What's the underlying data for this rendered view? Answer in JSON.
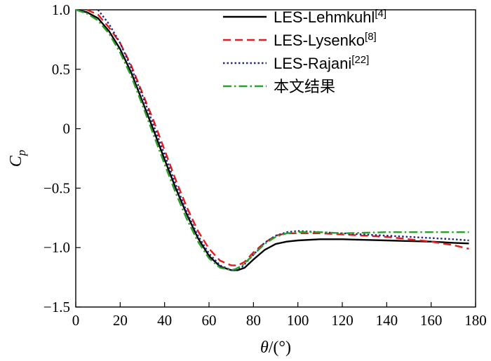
{
  "chart_data": {
    "type": "line",
    "xlabel_symbol": "θ",
    "xlabel_unit": "/(°)",
    "ylabel_main": "C",
    "ylabel_sub": "p",
    "xlim": [
      0,
      180
    ],
    "ylim": [
      -1.5,
      1.0
    ],
    "x_ticks": [
      0,
      20,
      40,
      60,
      80,
      100,
      120,
      140,
      160,
      180
    ],
    "y_ticks": [
      1.0,
      0.5,
      0,
      -0.5,
      -1.0,
      -1.5
    ],
    "y_tick_labels": [
      "1.0",
      "0.5",
      "0",
      "−0.5",
      "−1.0",
      "−1.5"
    ],
    "grid": false,
    "legend_position": "top-right",
    "series": [
      {
        "name": "LES-Lehmkuhl",
        "ref": "[4]",
        "color": "#000000",
        "style": "solid",
        "x": [
          0,
          5,
          10,
          15,
          20,
          25,
          30,
          35,
          40,
          45,
          50,
          55,
          60,
          65,
          70,
          73,
          76,
          80,
          85,
          90,
          95,
          100,
          110,
          120,
          130,
          140,
          150,
          160,
          170,
          177
        ],
        "y": [
          1.0,
          0.98,
          0.93,
          0.82,
          0.67,
          0.47,
          0.23,
          -0.01,
          -0.26,
          -0.5,
          -0.72,
          -0.92,
          -1.07,
          -1.16,
          -1.19,
          -1.19,
          -1.17,
          -1.1,
          -1.02,
          -0.97,
          -0.95,
          -0.94,
          -0.93,
          -0.93,
          -0.935,
          -0.94,
          -0.945,
          -0.95,
          -0.96,
          -0.965
        ]
      },
      {
        "name": "LES-Lysenko",
        "ref": "[8]",
        "color": "#e41a1c",
        "style": "dashed",
        "x": [
          5,
          10,
          15,
          20,
          25,
          30,
          35,
          40,
          45,
          50,
          55,
          60,
          65,
          70,
          73,
          76,
          80,
          85,
          90,
          95,
          100,
          110,
          120,
          130,
          140,
          150,
          160,
          170,
          177
        ],
        "y": [
          1.0,
          0.96,
          0.85,
          0.72,
          0.53,
          0.3,
          0.07,
          -0.18,
          -0.43,
          -0.66,
          -0.86,
          -1.01,
          -1.11,
          -1.15,
          -1.15,
          -1.12,
          -1.04,
          -0.96,
          -0.9,
          -0.88,
          -0.88,
          -0.88,
          -0.89,
          -0.9,
          -0.91,
          -0.93,
          -0.95,
          -0.98,
          -1.01
        ]
      },
      {
        "name": "LES-Rajani",
        "ref": "[22]",
        "color": "#1f2a80",
        "style": "dotted",
        "x": [
          10,
          15,
          20,
          25,
          30,
          35,
          40,
          45,
          50,
          55,
          60,
          65,
          70,
          72,
          75,
          80,
          85,
          90,
          95,
          100,
          110,
          120,
          130,
          140,
          150,
          160,
          170,
          177
        ],
        "y": [
          1.0,
          0.88,
          0.72,
          0.51,
          0.28,
          0.03,
          -0.22,
          -0.47,
          -0.7,
          -0.9,
          -1.05,
          -1.15,
          -1.19,
          -1.19,
          -1.16,
          -1.06,
          -0.96,
          -0.9,
          -0.87,
          -0.86,
          -0.87,
          -0.88,
          -0.89,
          -0.9,
          -0.91,
          -0.92,
          -0.93,
          -0.94
        ]
      },
      {
        "name": "本文结果",
        "ref": "",
        "color": "#2ca02c",
        "style": "dashdot",
        "x": [
          0,
          5,
          10,
          15,
          20,
          25,
          30,
          35,
          40,
          45,
          50,
          55,
          60,
          65,
          70,
          72,
          75,
          80,
          85,
          90,
          95,
          100,
          110,
          120,
          130,
          140,
          150,
          160,
          170,
          177
        ],
        "y": [
          1.0,
          0.97,
          0.91,
          0.8,
          0.64,
          0.44,
          0.2,
          -0.05,
          -0.3,
          -0.54,
          -0.76,
          -0.95,
          -1.09,
          -1.17,
          -1.19,
          -1.18,
          -1.15,
          -1.06,
          -0.97,
          -0.91,
          -0.88,
          -0.87,
          -0.87,
          -0.88,
          -0.875,
          -0.87,
          -0.87,
          -0.87,
          -0.87,
          -0.87
        ]
      }
    ]
  }
}
